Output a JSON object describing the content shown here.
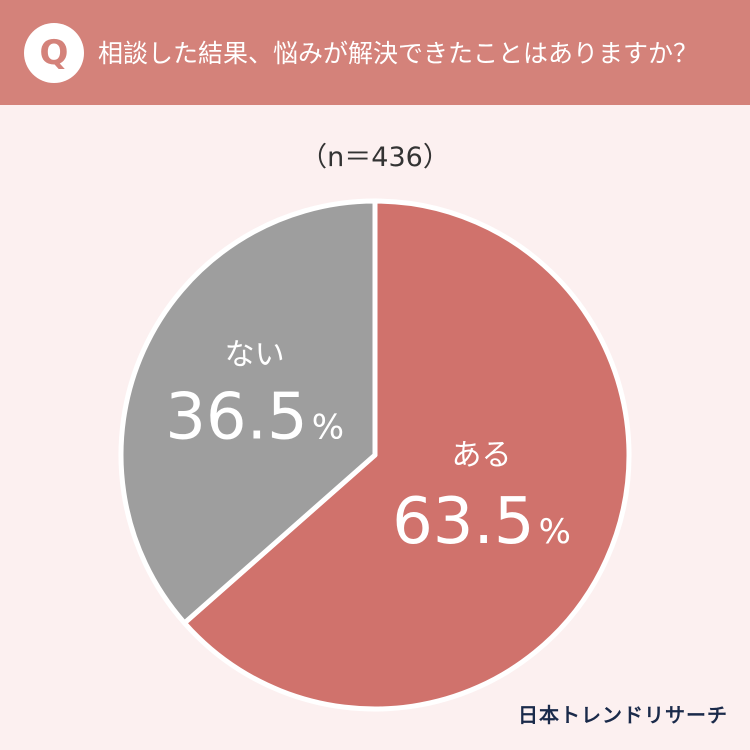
{
  "header": {
    "badge": "Q",
    "question": "相談した結果、悩みが解決できたことはありますか？"
  },
  "sample_label": "（n＝436）",
  "logo": "日本トレンドリサーチ",
  "colors": {
    "header_bg": "#d4827a",
    "page_bg": "#fcf0f0",
    "slice_yes": "#d0726c",
    "slice_no": "#9e9e9e"
  },
  "chart_data": {
    "type": "pie",
    "n": 436,
    "start_angle_deg": 0,
    "direction": "clockwise",
    "slices": [
      {
        "label": "ある",
        "value": 63.5,
        "value_text": "63.5",
        "unit": "%",
        "color": "#d0726c"
      },
      {
        "label": "ない",
        "value": 36.5,
        "value_text": "36.5",
        "unit": "%",
        "color": "#9e9e9e"
      }
    ]
  }
}
